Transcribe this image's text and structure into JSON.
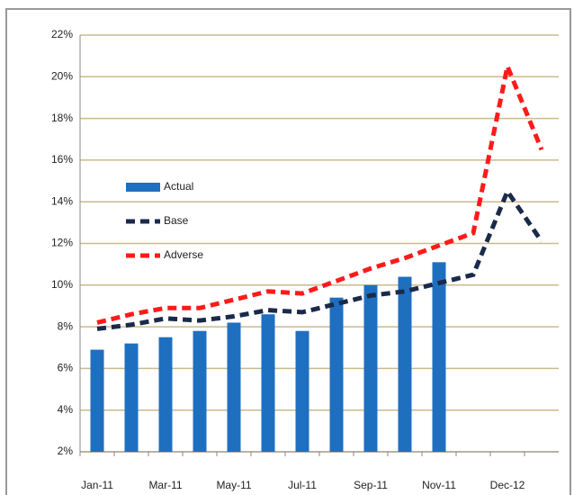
{
  "chart_data": {
    "type": "combo",
    "categories": [
      "Jan-11",
      null,
      "Mar-11",
      null,
      "May-11",
      null,
      "Jul-11",
      null,
      "Sep-11",
      null,
      "Nov-11",
      null,
      "Dec-12",
      null
    ],
    "series": [
      {
        "name": "Actual",
        "type": "bar",
        "color": "#1f6fc1",
        "values": [
          6.9,
          7.2,
          7.5,
          7.8,
          8.2,
          8.6,
          7.8,
          9.4,
          10,
          10.4,
          11.1,
          null,
          null,
          null
        ]
      },
      {
        "name": "Base",
        "type": "line",
        "dashed": true,
        "color": "#1a2a4a",
        "values": [
          7.9,
          8.1,
          8.4,
          8.3,
          8.5,
          8.8,
          8.7,
          9.1,
          9.5,
          9.7,
          10.1,
          10.5,
          14.5,
          12.1
        ]
      },
      {
        "name": "Adverse",
        "type": "line",
        "dashed": true,
        "color": "#ff1a1a",
        "values": [
          8.2,
          8.6,
          8.9,
          8.9,
          9.3,
          9.7,
          9.6,
          10.2,
          10.8,
          11.3,
          11.9,
          12.5,
          20.5,
          16.5
        ]
      }
    ],
    "ylim": [
      2,
      22
    ],
    "yticks": [
      {
        "value": 2,
        "label": "2%"
      },
      {
        "value": 4,
        "label": "4%"
      },
      {
        "value": 6,
        "label": "6%"
      },
      {
        "value": 8,
        "label": "8%"
      },
      {
        "value": 10,
        "label": "10%"
      },
      {
        "value": 12,
        "label": "12%"
      },
      {
        "value": 14,
        "label": "14%"
      },
      {
        "value": 16,
        "label": "16%"
      },
      {
        "value": 18,
        "label": "18%"
      },
      {
        "value": 20,
        "label": "20%"
      },
      {
        "value": 22,
        "label": "22%"
      }
    ],
    "grid": true,
    "legend": "left"
  }
}
